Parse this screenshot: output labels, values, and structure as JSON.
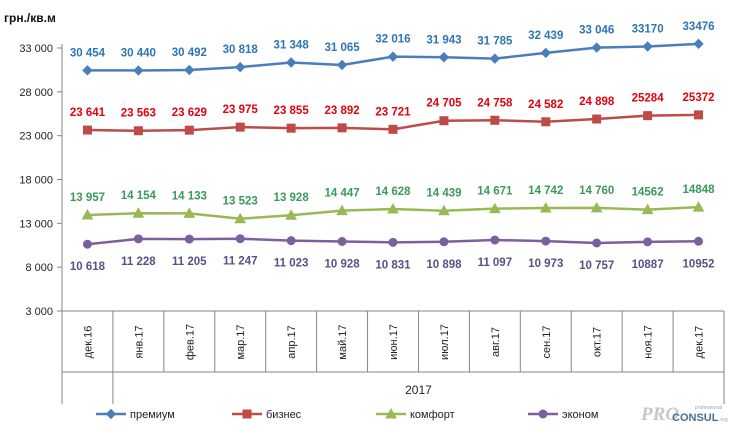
{
  "chart_data": {
    "type": "line",
    "unit_label": "грн./кв.м",
    "categories": [
      "дек.16",
      "янв.17",
      "фев.17",
      "мар.17",
      "апр.17",
      "май.17",
      "июн.17",
      "июл.17",
      "авг.17",
      "сен.17",
      "окт.17",
      "ноя.17",
      "дек.17"
    ],
    "year_label": "2017",
    "ylim": [
      3000,
      33000
    ],
    "yticks": [
      3000,
      8000,
      13000,
      18000,
      23000,
      28000,
      33000
    ],
    "ytick_labels": [
      "3 000",
      "8 000",
      "13 000",
      "18 000",
      "23 000",
      "28 000",
      "33 000"
    ],
    "grid": false,
    "legend_position": "bottom",
    "series": [
      {
        "name": "премиум",
        "color": "#4a7ebb",
        "label_color": "#2e75b6",
        "marker": "diamond",
        "values": [
          30454,
          30440,
          30492,
          30818,
          31348,
          31065,
          32016,
          31943,
          31785,
          32439,
          33046,
          33170,
          33476
        ],
        "labels": [
          "30 454",
          "30 440",
          "30 492",
          "30 818",
          "31 348",
          "31 065",
          "32 016",
          "31 943",
          "31 785",
          "32 439",
          "33 046",
          "33170",
          "33476"
        ]
      },
      {
        "name": "бизнес",
        "color": "#be4b48",
        "label_color": "#e3000f",
        "marker": "square",
        "values": [
          23641,
          23563,
          23629,
          23975,
          23855,
          23892,
          23721,
          24705,
          24758,
          24582,
          24898,
          25284,
          25372
        ],
        "labels": [
          "23 641",
          "23 563",
          "23 629",
          "23 975",
          "23 855",
          "23 892",
          "23 721",
          "24 705",
          "24 758",
          "24 582",
          "24 898",
          "25284",
          "25372"
        ]
      },
      {
        "name": "комфорт",
        "color": "#98b954",
        "label_color": "#3a9a5b",
        "marker": "triangle",
        "values": [
          13957,
          14154,
          14133,
          13523,
          13928,
          14447,
          14628,
          14439,
          14671,
          14742,
          14760,
          14562,
          14848
        ],
        "labels": [
          "13 957",
          "14 154",
          "14 133",
          "13 523",
          "13 928",
          "14 447",
          "14 628",
          "14 439",
          "14 671",
          "14 742",
          "14 760",
          "14562",
          "14848"
        ]
      },
      {
        "name": "эконом",
        "color": "#7d5fa0",
        "label_color": "#5a4f86",
        "marker": "circle",
        "values": [
          10618,
          11228,
          11205,
          11247,
          11023,
          10928,
          10831,
          10898,
          11097,
          10973,
          10757,
          10887,
          10952
        ],
        "labels": [
          "10 618",
          "11 228",
          "11 205",
          "11 247",
          "11 023",
          "10 928",
          "10 831",
          "10 898",
          "11 097",
          "10 973",
          "10 757",
          "10887",
          "10952"
        ]
      }
    ]
  },
  "logo": {
    "text_pro": "PRO",
    "text_consul": "CONSUL",
    "text_small": "professional",
    "text_domain": ".org"
  }
}
